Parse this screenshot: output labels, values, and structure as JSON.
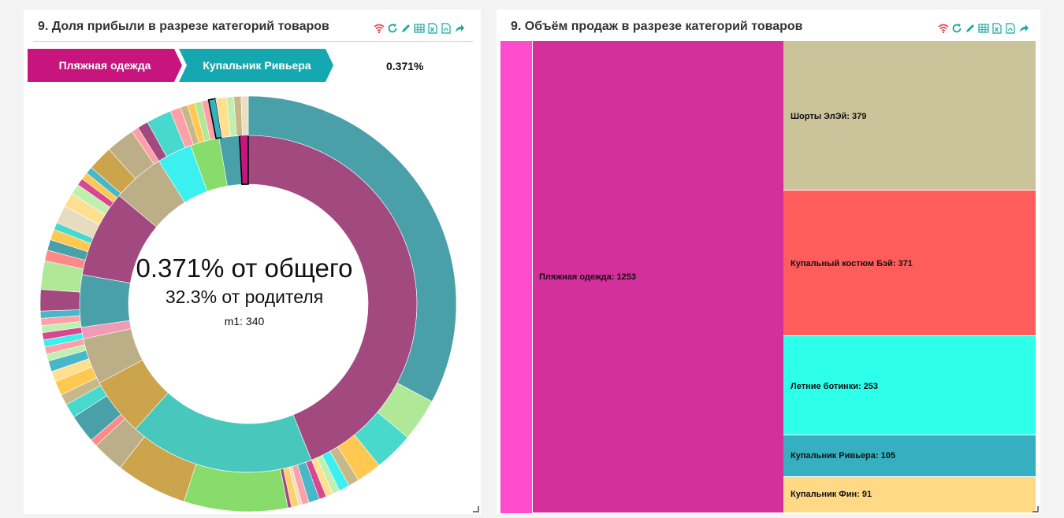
{
  "colors": {
    "accent_teal": "#16a8b0",
    "accent_pink": "#c8147d",
    "icon_red": "#e8434f",
    "icon_teal": "#18a8a0"
  },
  "left_panel": {
    "title": "9. Доля прибыли в разрезе категорий товаров",
    "toolbar_icons": [
      "wifi-icon",
      "refresh-icon",
      "edit-icon",
      "table-icon",
      "excel-icon",
      "pdf-icon",
      "share-icon"
    ],
    "breadcrumb": {
      "items": [
        {
          "label": "Пляжная одежда",
          "color": "#c8147d"
        },
        {
          "label": "Купальник Ривьера",
          "color": "#16a8b0"
        }
      ],
      "percent": "0.371%"
    },
    "center": {
      "main": "0.371% от общего",
      "sub": "32.3% от родителя",
      "m1": "m1: 340"
    }
  },
  "right_panel": {
    "title": "9. Объём продаж в разрезе категорий товаров",
    "toolbar_icons": [
      "wifi-icon",
      "refresh-icon",
      "edit-icon",
      "table-icon",
      "excel-icon",
      "pdf-icon",
      "share-icon"
    ],
    "treemap": [
      {
        "label": "Пляжная одежда: 1253",
        "color": "#d4309c"
      },
      {
        "label": "Шорты ЭлЭй: 379",
        "color": "#cbc39a"
      },
      {
        "label": "Купальный костюм Бэй: 371",
        "color": "#ff5c5c"
      },
      {
        "label": "Летние ботинки: 253",
        "color": "#2effea"
      },
      {
        "label": "Купальник Ривьера: 105",
        "color": "#36b0c0"
      },
      {
        "label": "Купальник Фин: 91",
        "color": "#ffd986"
      }
    ]
  }
}
